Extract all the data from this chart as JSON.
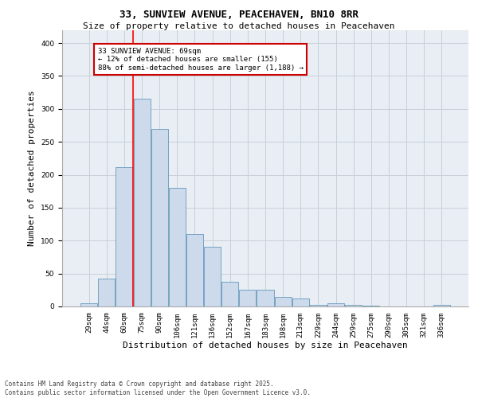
{
  "title": "33, SUNVIEW AVENUE, PEACEHAVEN, BN10 8RR",
  "subtitle": "Size of property relative to detached houses in Peacehaven",
  "xlabel": "Distribution of detached houses by size in Peacehaven",
  "ylabel": "Number of detached properties",
  "categories": [
    "29sqm",
    "44sqm",
    "60sqm",
    "75sqm",
    "90sqm",
    "106sqm",
    "121sqm",
    "136sqm",
    "152sqm",
    "167sqm",
    "183sqm",
    "198sqm",
    "213sqm",
    "229sqm",
    "244sqm",
    "259sqm",
    "275sqm",
    "290sqm",
    "305sqm",
    "321sqm",
    "336sqm"
  ],
  "values": [
    5,
    42,
    212,
    315,
    270,
    180,
    110,
    91,
    38,
    25,
    25,
    15,
    12,
    2,
    5,
    2,
    1,
    0,
    0,
    0,
    3
  ],
  "bar_color": "#ccdaeb",
  "bar_edge_color": "#6699bb",
  "red_line_x": 2.5,
  "annotation_text": "33 SUNVIEW AVENUE: 69sqm\n← 12% of detached houses are smaller (155)\n88% of semi-detached houses are larger (1,188) →",
  "annotation_box_color": "#ffffff",
  "annotation_box_edge_color": "#cc0000",
  "footnote": "Contains HM Land Registry data © Crown copyright and database right 2025.\nContains public sector information licensed under the Open Government Licence v3.0.",
  "ylim": [
    0,
    420
  ],
  "yticks": [
    0,
    50,
    100,
    150,
    200,
    250,
    300,
    350,
    400
  ],
  "grid_color": "#c8d0d8",
  "background_color": "#e8eef4",
  "title_fontsize": 9,
  "subtitle_fontsize": 8,
  "tick_fontsize": 6.5,
  "label_fontsize": 8,
  "footnote_fontsize": 5.5
}
